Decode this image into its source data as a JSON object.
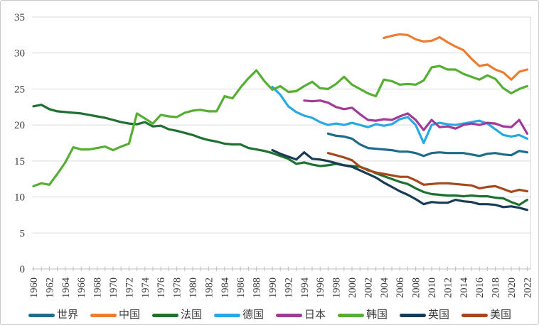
{
  "chart_data": {
    "type": "line",
    "title": "",
    "x_start": 1960,
    "x_end": 2022,
    "x_tick_label_step": 2,
    "xlabel": "",
    "ylabel": "",
    "ylim": [
      0,
      35
    ],
    "y_tick_step": 5,
    "grid": "horizontal",
    "legend_position": "bottom",
    "series": [
      {
        "key": "world",
        "label": "世界",
        "color": "#1F6B8C",
        "start_year": 1997,
        "values": [
          18.8,
          18.5,
          18.4,
          18.1,
          17.3,
          16.8,
          16.7,
          16.6,
          16.5,
          16.3,
          16.3,
          16.1,
          15.7,
          16.1,
          16.2,
          16.1,
          16.1,
          16.1,
          15.9,
          15.7,
          16.0,
          16.1,
          15.9,
          15.8,
          16.4,
          16.2
        ]
      },
      {
        "key": "china",
        "label": "中国",
        "color": "#ED7D31",
        "start_year": 2004,
        "values": [
          32.1,
          32.4,
          32.6,
          32.5,
          31.9,
          31.6,
          31.7,
          32.2,
          31.5,
          30.9,
          30.4,
          29.2,
          28.2,
          28.4,
          27.7,
          27.3,
          26.3,
          27.4,
          27.7
        ]
      },
      {
        "key": "france",
        "label": "法国",
        "color": "#1E7130",
        "start_year": 1960,
        "values": [
          22.6,
          22.8,
          22.2,
          21.9,
          21.8,
          21.7,
          21.6,
          21.4,
          21.2,
          21.0,
          20.7,
          20.4,
          20.2,
          20.1,
          20.4,
          19.8,
          19.9,
          19.4,
          19.2,
          18.9,
          18.6,
          18.2,
          17.9,
          17.7,
          17.4,
          17.3,
          17.3,
          16.8,
          16.6,
          16.4,
          16.1,
          15.7,
          15.3,
          14.6,
          14.8,
          14.5,
          14.3,
          14.4,
          14.6,
          14.4,
          14.3,
          14.2,
          13.8,
          13.3,
          12.9,
          12.5,
          12.1,
          11.8,
          11.2,
          10.7,
          10.4,
          10.3,
          10.2,
          10.2,
          10.1,
          10.2,
          10.1,
          10.1,
          9.9,
          9.8,
          9.3,
          8.9,
          9.6
        ]
      },
      {
        "key": "germany",
        "label": "德国",
        "color": "#29A9E1",
        "start_year": 1990,
        "values": [
          25.3,
          24.2,
          22.6,
          21.8,
          21.3,
          21.0,
          20.4,
          20.0,
          20.2,
          20.0,
          20.3,
          20.0,
          19.7,
          20.1,
          19.9,
          20.1,
          20.8,
          21.1,
          20.0,
          17.5,
          20.0,
          20.3,
          20.1,
          20.0,
          20.2,
          20.4,
          20.6,
          20.2,
          19.4,
          18.6,
          18.4,
          18.6,
          18.1
        ]
      },
      {
        "key": "japan",
        "label": "日本",
        "color": "#A23A97",
        "start_year": 1994,
        "values": [
          23.4,
          23.3,
          23.4,
          23.1,
          22.5,
          22.2,
          22.4,
          21.5,
          20.7,
          20.6,
          20.8,
          20.7,
          21.2,
          21.6,
          20.7,
          19.3,
          20.7,
          19.7,
          19.8,
          19.5,
          20.0,
          20.2,
          20.0,
          20.3,
          20.2,
          19.8,
          19.7,
          20.7,
          18.8
        ]
      },
      {
        "key": "korea",
        "label": "韩国",
        "color": "#55AF33",
        "start_year": 1960,
        "values": [
          11.5,
          11.9,
          11.7,
          13.2,
          14.8,
          16.9,
          16.6,
          16.6,
          16.8,
          17.0,
          16.5,
          17.0,
          17.4,
          21.6,
          20.9,
          20.2,
          21.4,
          21.2,
          21.1,
          21.7,
          22.0,
          22.1,
          21.9,
          21.9,
          24.0,
          23.7,
          25.2,
          26.5,
          27.6,
          26.1,
          24.9,
          25.4,
          24.6,
          24.7,
          25.4,
          26.0,
          25.1,
          25.0,
          25.7,
          26.7,
          25.6,
          25.0,
          24.4,
          24.0,
          26.3,
          26.1,
          25.6,
          25.7,
          25.6,
          26.2,
          28.0,
          28.2,
          27.7,
          27.7,
          27.1,
          26.7,
          26.3,
          26.9,
          26.4,
          25.1,
          24.4,
          25.0,
          25.4
        ]
      },
      {
        "key": "uk",
        "label": "英国",
        "color": "#173C54",
        "start_year": 1990,
        "values": [
          16.5,
          16.0,
          15.6,
          15.2,
          16.2,
          15.3,
          15.2,
          15.0,
          14.7,
          14.4,
          14.2,
          13.7,
          13.2,
          12.7,
          12.0,
          11.4,
          10.8,
          10.3,
          9.7,
          9.0,
          9.3,
          9.2,
          9.2,
          9.6,
          9.4,
          9.3,
          9.0,
          9.0,
          8.9,
          8.6,
          8.7,
          8.5,
          8.2
        ]
      },
      {
        "key": "usa",
        "label": "美国",
        "color": "#A5491D",
        "start_year": 1997,
        "values": [
          16.1,
          15.8,
          15.5,
          15.1,
          14.2,
          13.7,
          13.4,
          13.2,
          13.0,
          12.8,
          12.8,
          12.3,
          11.7,
          11.8,
          11.9,
          11.9,
          11.8,
          11.7,
          11.6,
          11.2,
          11.4,
          11.5,
          11.1,
          10.7,
          11.0,
          10.8
        ]
      }
    ]
  },
  "style": {
    "grid_color": "#D9D9D9",
    "axis_color": "#BFBFBF",
    "tick_color": "#BFBFBF",
    "text_color": "#3B3B3B",
    "background": "#FFFFFF",
    "frame_border_color": "#C9C9C9"
  }
}
